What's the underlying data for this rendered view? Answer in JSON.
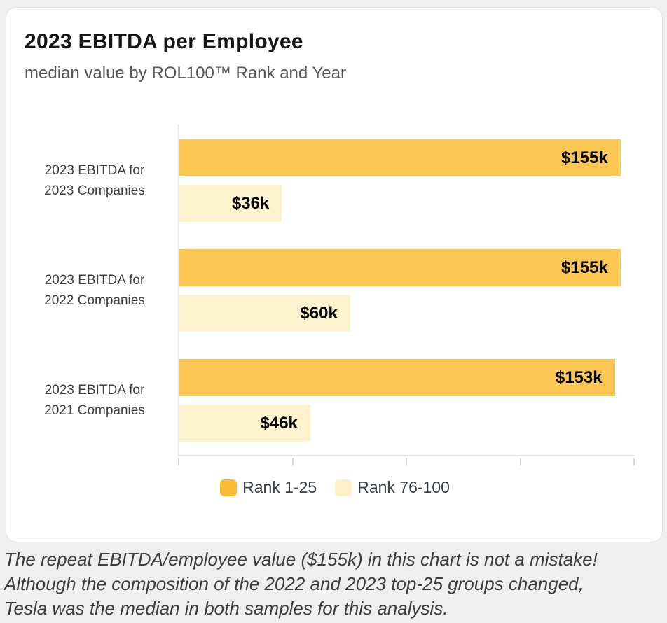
{
  "card": {
    "title": "2023 EBITDA per Employee",
    "subtitle": "median value by ROL100™ Rank and Year"
  },
  "chart_data": {
    "type": "bar",
    "orientation": "horizontal",
    "title": "2023 EBITDA per Employee",
    "subtitle": "median value by ROL100™ Rank and Year",
    "categories": [
      [
        "2023 EBITDA for",
        "2023 Companies"
      ],
      [
        "2023 EBITDA for",
        "2022 Companies"
      ],
      [
        "2023 EBITDA for",
        "2021 Companies"
      ]
    ],
    "series": [
      {
        "name": "Rank 1-25",
        "values": [
          155,
          155,
          153
        ],
        "display_labels": [
          "$155k",
          "$155k",
          "$153k"
        ],
        "color": "#FCC653"
      },
      {
        "name": "Rank 76-100",
        "values": [
          36,
          60,
          46
        ],
        "display_labels": [
          "$36k",
          "$60k",
          "$46k"
        ],
        "color": "#FCF2CE"
      }
    ],
    "xlim": [
      0,
      160
    ],
    "x_ticks": [
      0,
      40,
      80,
      120,
      160
    ],
    "x_tick_labels_visible": false,
    "grid": false,
    "legend_position": "bottom"
  },
  "legend": {
    "items": [
      {
        "label": "Rank 1-25",
        "color": "#FBBB32"
      },
      {
        "label": "Rank 76-100",
        "color": "#FCF0C6"
      }
    ]
  },
  "note": {
    "lines": [
      "The repeat EBITDA/employee value ($155k) in this chart is not a mistake!",
      "Although the composition of the 2022 and 2023 top-25 groups changed,",
      "Tesla was the median in both samples for this analysis."
    ]
  },
  "colors": {
    "page_background": "#efefef",
    "card_background": "#ffffff",
    "axis_line": "#e2e2e2",
    "value_label": "#000000",
    "category_label": "#3d4045",
    "note_text": "#3d3d3d"
  }
}
